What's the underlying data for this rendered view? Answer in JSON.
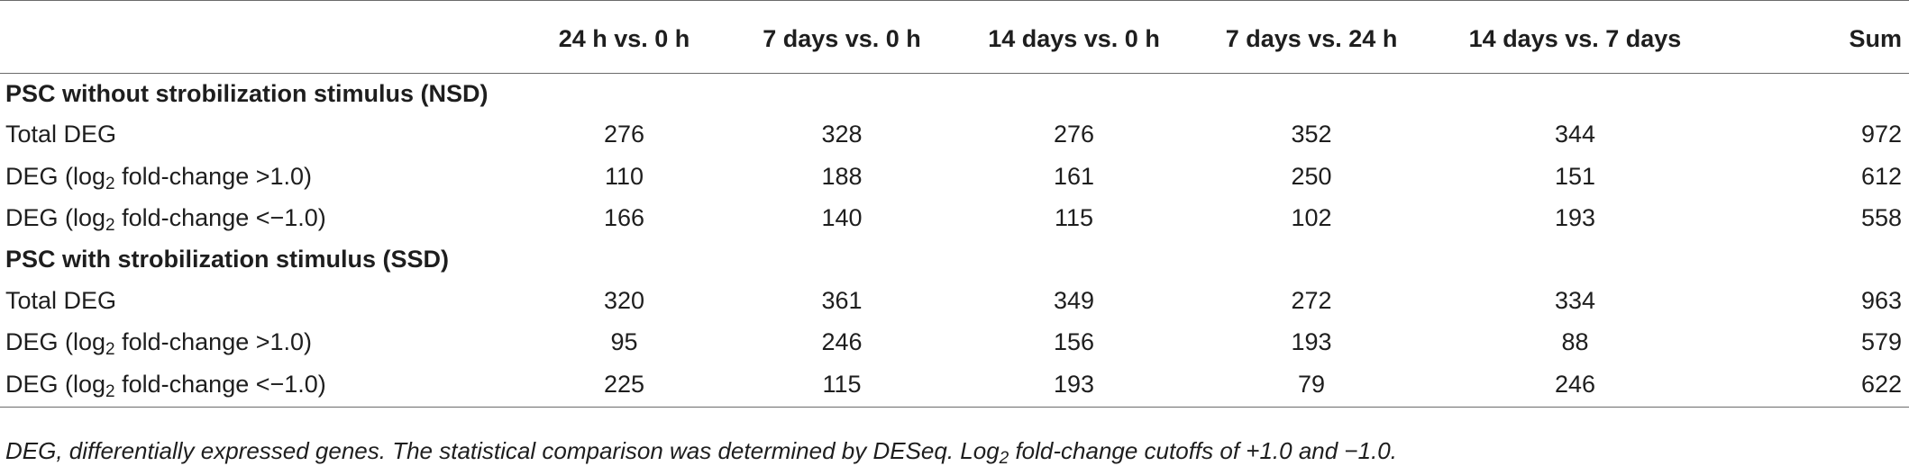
{
  "table": {
    "headers": [
      "",
      "24 h vs. 0 h",
      "7 days vs. 0 h",
      "14 days vs. 0 h",
      "7 days vs. 24 h",
      "14 days vs. 7 days",
      "Sum"
    ],
    "sections": [
      {
        "title": "PSC without strobilization stimulus (NSD)",
        "rows": [
          {
            "label_pre": "Total DEG",
            "label_sub": "",
            "label_post": "",
            "values": [
              "276",
              "328",
              "276",
              "352",
              "344",
              "972"
            ]
          },
          {
            "label_pre": "DEG (log",
            "label_sub": "2",
            "label_post": " fold-change >1.0)",
            "values": [
              "110",
              "188",
              "161",
              "250",
              "151",
              "612"
            ]
          },
          {
            "label_pre": "DEG (log",
            "label_sub": "2",
            "label_post": " fold-change <−1.0)",
            "values": [
              "166",
              "140",
              "115",
              "102",
              "193",
              "558"
            ]
          }
        ]
      },
      {
        "title": "PSC with strobilization stimulus (SSD)",
        "rows": [
          {
            "label_pre": "Total DEG",
            "label_sub": "",
            "label_post": "",
            "values": [
              "320",
              "361",
              "349",
              "272",
              "334",
              "963"
            ]
          },
          {
            "label_pre": "DEG (log",
            "label_sub": "2",
            "label_post": " fold-change >1.0)",
            "values": [
              "95",
              "246",
              "156",
              "193",
              "88",
              "579"
            ]
          },
          {
            "label_pre": "DEG (log",
            "label_sub": "2",
            "label_post": " fold-change <−1.0)",
            "values": [
              "225",
              "115",
              "193",
              "79",
              "246",
              "622"
            ]
          }
        ]
      }
    ]
  },
  "footnote": {
    "pre": "DEG, differentially expressed genes. The statistical comparison was determined by DESeq. Log",
    "sub": "2",
    "post": " fold-change cutoffs of +1.0 and −1.0."
  }
}
